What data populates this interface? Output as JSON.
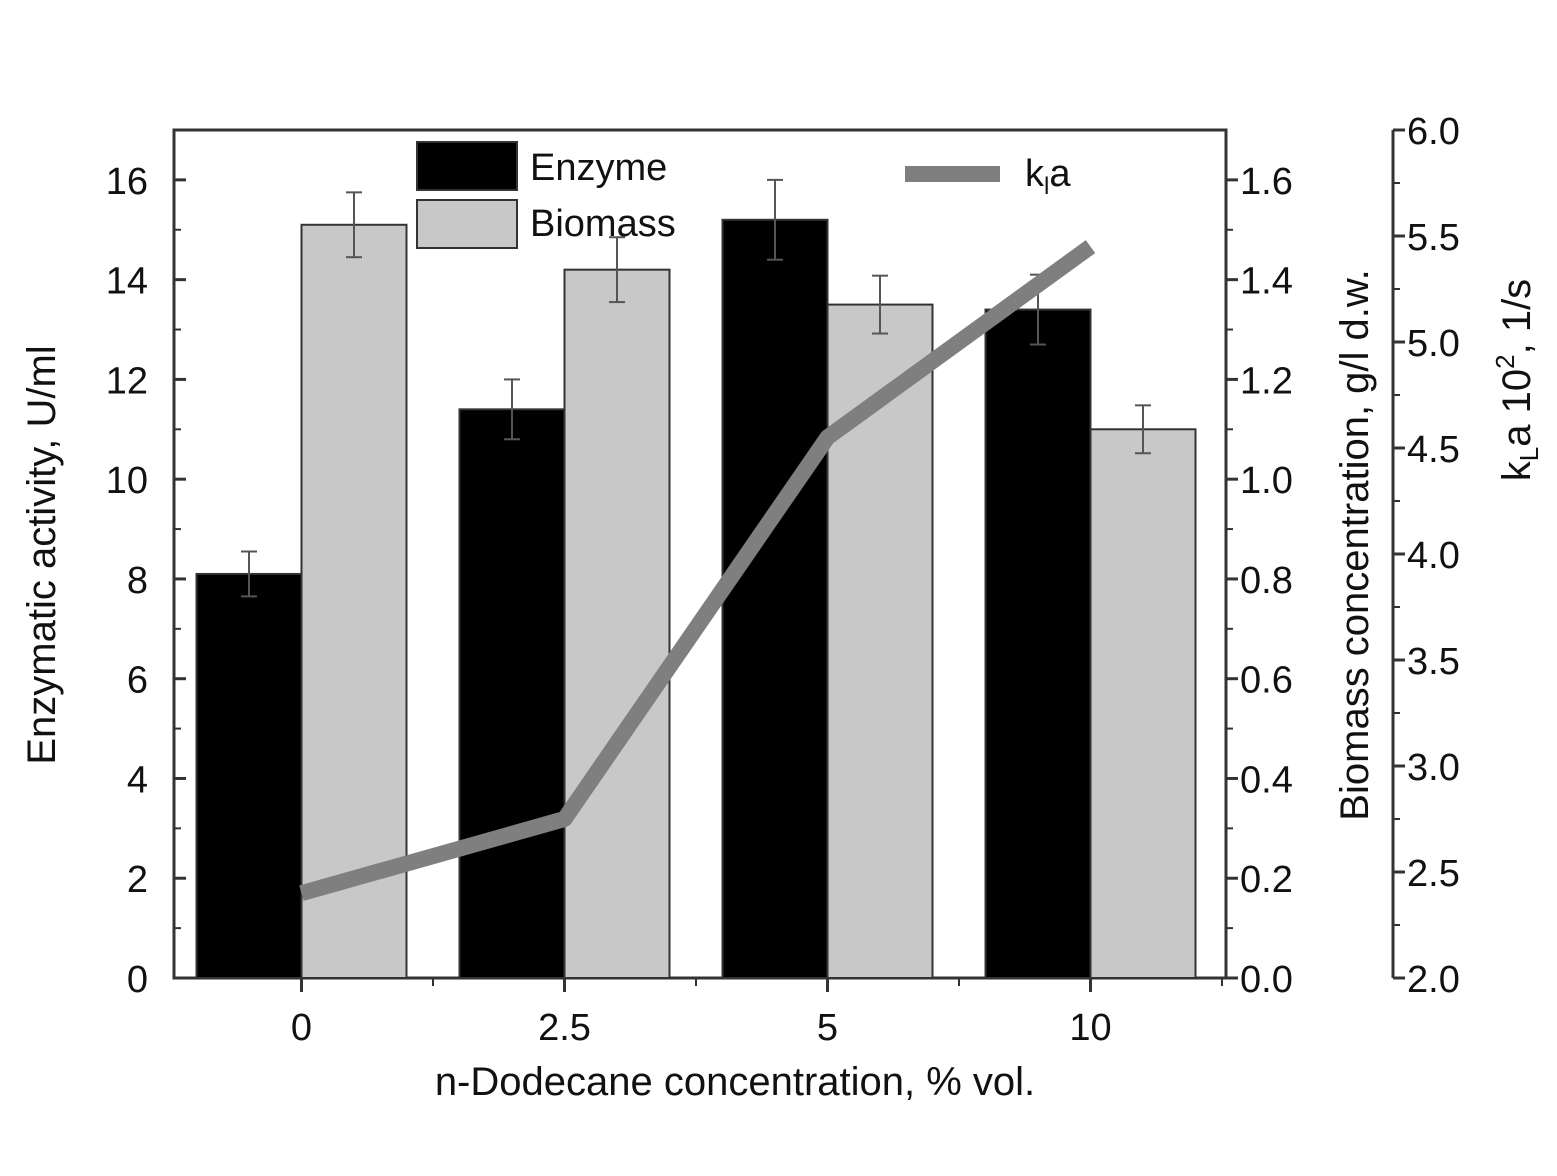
{
  "chart_data": {
    "type": "bar",
    "xlabel": "n-Dodecane concentration, % vol.",
    "categories": [
      "0",
      "2.5",
      "5",
      "10"
    ],
    "series": [
      {
        "name": "Enzyme",
        "axis": "left",
        "color": "#000000",
        "values": [
          8.1,
          11.4,
          15.2,
          13.4
        ],
        "errors": [
          0.45,
          0.6,
          0.8,
          0.7
        ]
      },
      {
        "name": "Biomass",
        "axis": "middle",
        "color": "#c8c8c8",
        "values": [
          1.51,
          1.42,
          1.35,
          1.1
        ],
        "errors": [
          0.065,
          0.065,
          0.058,
          0.048
        ]
      },
      {
        "name": "kLa",
        "type": "line",
        "axis": "right",
        "color": "#7f7f7f",
        "values": [
          2.4,
          2.75,
          4.55,
          5.45
        ]
      }
    ],
    "axes": {
      "left": {
        "label_main": "Enzymatic activity, U/ml",
        "ylim": [
          0,
          17
        ],
        "ticks": [
          "0",
          "2",
          "4",
          "6",
          "8",
          "10",
          "12",
          "14",
          "16"
        ]
      },
      "middle": {
        "label_main": "Biomass concentration, g/l d.w.",
        "ylim": [
          0,
          1.7
        ],
        "ticks": [
          "0.0",
          "0.2",
          "0.4",
          "0.6",
          "0.8",
          "1.0",
          "1.2",
          "1.4",
          "1.6"
        ]
      },
      "right": {
        "label_k": "k",
        "label_sub": "L",
        "label_mid": "a 10",
        "label_sup": "2",
        "label_end": ", 1/s",
        "ylim": [
          2.0,
          6.0
        ],
        "ticks": [
          "2.0",
          "2.5",
          "3.0",
          "3.5",
          "4.0",
          "4.5",
          "5.0",
          "5.5",
          "6.0"
        ]
      }
    },
    "legend": {
      "placement": "top",
      "enzyme_label": "Enzyme",
      "biomass_label": "Biomass",
      "kla_k": "k",
      "kla_sub": "l",
      "kla_a": "a"
    }
  }
}
